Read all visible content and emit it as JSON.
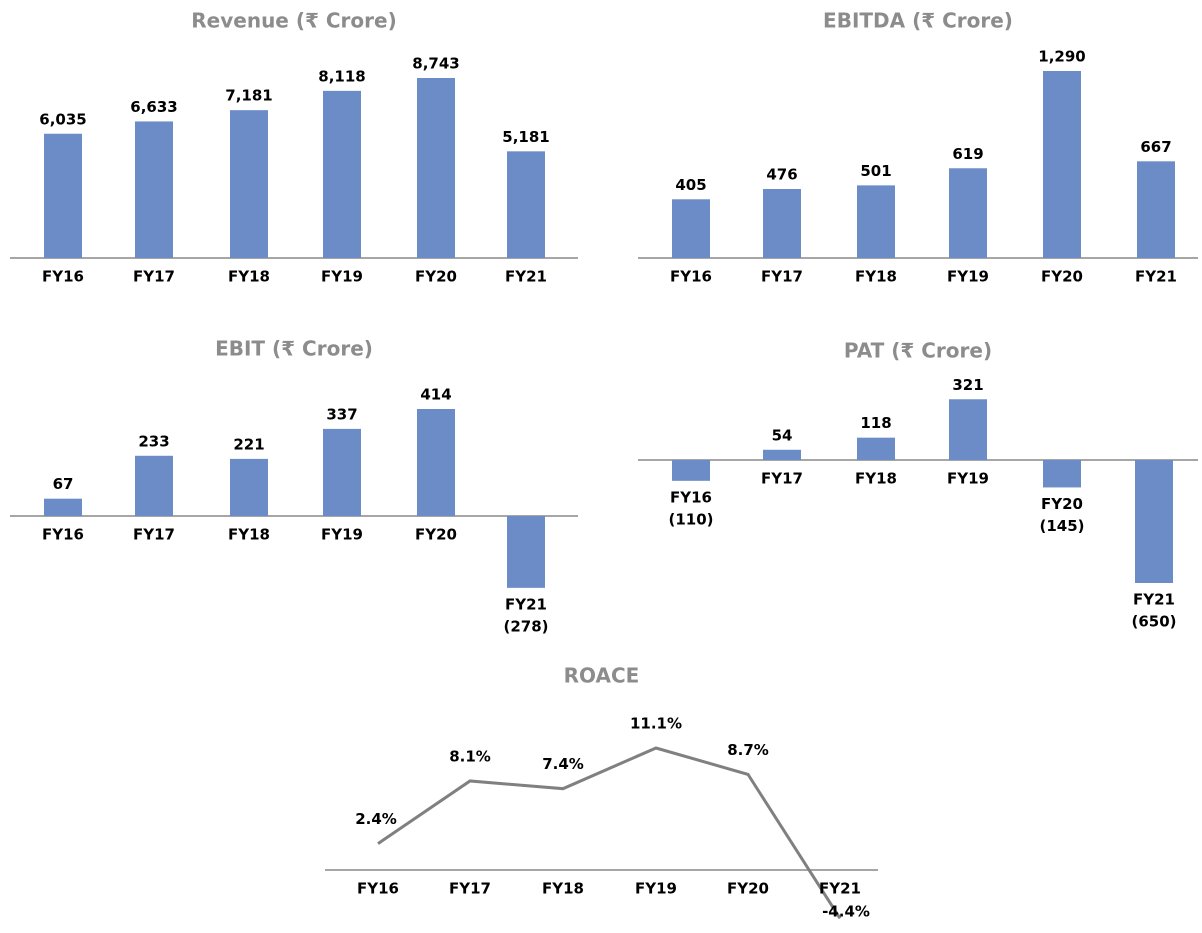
{
  "chart_data": [
    {
      "type": "bar",
      "title": "Revenue (₹ Crore)",
      "categories": [
        "FY16",
        "FY17",
        "FY18",
        "FY19",
        "FY20",
        "FY21"
      ],
      "values": [
        6035,
        6633,
        7181,
        8118,
        8743,
        5181
      ],
      "value_labels": [
        "6,035",
        "6,633",
        "7,181",
        "8,118",
        "8,743",
        "5,181"
      ],
      "color": "#6b8cc7"
    },
    {
      "type": "bar",
      "title": "EBITDA (₹ Crore)",
      "categories": [
        "FY16",
        "FY17",
        "FY18",
        "FY19",
        "FY20",
        "FY21"
      ],
      "values": [
        405,
        476,
        501,
        619,
        1290,
        667
      ],
      "value_labels": [
        "405",
        "476",
        "501",
        "619",
        "1,290",
        "667"
      ],
      "color": "#6b8cc7"
    },
    {
      "type": "bar",
      "title": "EBIT (₹ Crore)",
      "categories": [
        "FY16",
        "FY17",
        "FY18",
        "FY19",
        "FY20",
        "FY21"
      ],
      "values": [
        67,
        233,
        221,
        337,
        414,
        -278
      ],
      "value_labels": [
        "67",
        "233",
        "221",
        "337",
        "414",
        "(278)"
      ],
      "color": "#6b8cc7"
    },
    {
      "type": "bar",
      "title": "PAT (₹ Crore)",
      "categories": [
        "FY16",
        "FY17",
        "FY18",
        "FY19",
        "FY20",
        "FY21"
      ],
      "values": [
        -110,
        54,
        118,
        321,
        -145,
        -650
      ],
      "value_labels": [
        "(110)",
        "54",
        "118",
        "321",
        "(145)",
        "(650)"
      ],
      "color": "#6b8cc7"
    },
    {
      "type": "line",
      "title": "ROACE",
      "categories": [
        "FY16",
        "FY17",
        "FY18",
        "FY19",
        "FY20",
        "FY21"
      ],
      "values": [
        2.4,
        8.1,
        7.4,
        11.1,
        8.7,
        -4.4
      ],
      "value_labels": [
        "2.4%",
        "8.1%",
        "7.4%",
        "11.1%",
        "8.7%",
        "-4.4%"
      ],
      "color": "#808080"
    }
  ]
}
